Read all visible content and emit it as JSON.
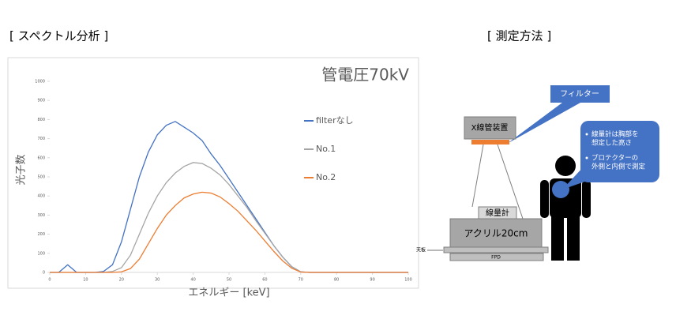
{
  "headers": {
    "left": "[ スペクトル分析 ]",
    "right": "[ 測定方法 ]"
  },
  "chart_data": {
    "type": "line",
    "title": "管電圧70kV",
    "x_label": "エネルギー [keV]",
    "y_label": "光子数",
    "x": [
      0,
      2.5,
      5,
      7.5,
      10,
      12.5,
      15,
      17.5,
      20,
      22.5,
      25,
      27.5,
      30,
      32.5,
      35,
      37.5,
      40,
      42.5,
      45,
      47.5,
      50,
      52.5,
      55,
      57.5,
      60,
      62.5,
      65,
      67.5,
      70,
      72.5,
      75,
      77.5,
      80,
      82.5,
      85,
      87.5,
      90,
      92.5,
      95,
      97.5,
      100
    ],
    "series": [
      {
        "name": "filterなし",
        "color": "#4472c4",
        "values": [
          0,
          0,
          40,
          0,
          0,
          0,
          5,
          40,
          160,
          330,
          500,
          630,
          720,
          770,
          790,
          760,
          730,
          690,
          620,
          560,
          490,
          420,
          350,
          280,
          210,
          140,
          80,
          30,
          3,
          0,
          0,
          0,
          0,
          0,
          0,
          0,
          0,
          0,
          0,
          0,
          0
        ]
      },
      {
        "name": "No.1",
        "color": "#a5a5a5",
        "values": [
          0,
          0,
          0,
          0,
          0,
          0,
          0,
          5,
          25,
          90,
          200,
          310,
          400,
          470,
          520,
          555,
          575,
          570,
          545,
          510,
          460,
          400,
          340,
          270,
          205,
          140,
          80,
          30,
          3,
          0,
          0,
          0,
          0,
          0,
          0,
          0,
          0,
          0,
          0,
          0,
          0
        ]
      },
      {
        "name": "No.2",
        "color": "#ed7d31",
        "values": [
          0,
          0,
          0,
          0,
          0,
          0,
          0,
          0,
          3,
          20,
          70,
          150,
          230,
          300,
          350,
          390,
          410,
          420,
          415,
          395,
          360,
          320,
          270,
          220,
          165,
          110,
          60,
          22,
          2,
          0,
          0,
          0,
          0,
          0,
          0,
          0,
          0,
          0,
          0,
          0,
          0
        ]
      }
    ],
    "xlim": [
      0,
      100
    ],
    "xticks": [
      0,
      10,
      20,
      30,
      40,
      50,
      60,
      70,
      80,
      90,
      100
    ],
    "ylim": [
      0,
      1000
    ],
    "yticks": [
      0,
      100,
      200,
      300,
      400,
      500,
      600,
      700,
      800,
      900,
      1000
    ],
    "grid": false
  },
  "diagram": {
    "filter_callout": "フィルター",
    "tube": "X線管装置",
    "dosimeter": "線量計",
    "acrylic": "アクリル20cm",
    "table_top": "天板",
    "fpd": "FPD",
    "notes": [
      [
        "線量計は胸部を",
        "想定した高さ"
      ],
      [
        "プロテクターの",
        "外側と内側で測定"
      ]
    ]
  }
}
